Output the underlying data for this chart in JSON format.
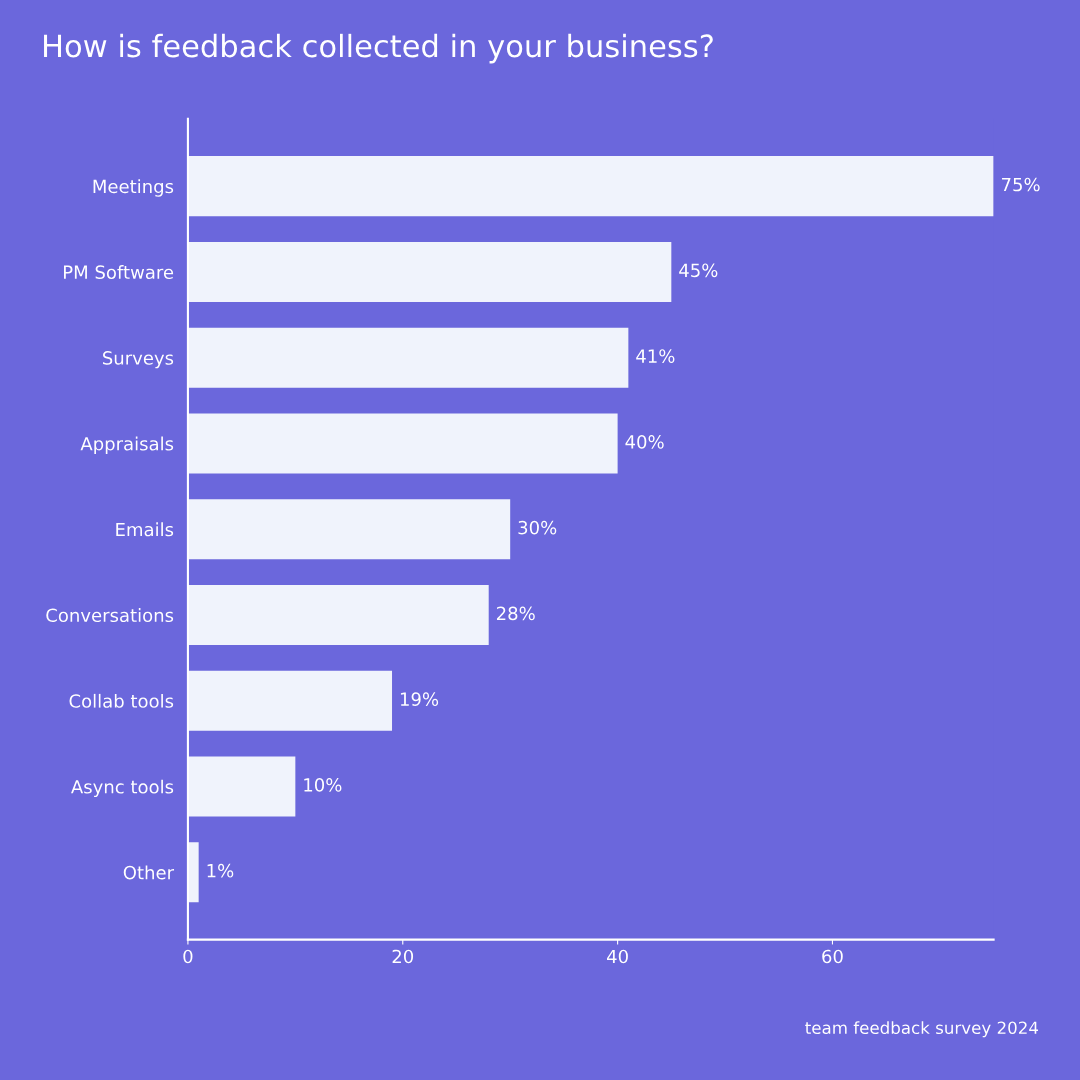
{
  "chart_data": {
    "type": "bar",
    "orientation": "horizontal",
    "title": "How is feedback collected in your business?",
    "categories": [
      "Meetings",
      "PM Software",
      "Surveys",
      "Appraisals",
      "Emails",
      "Conversations",
      "Collab tools",
      "Async tools",
      "Other"
    ],
    "values": [
      75,
      45,
      41,
      40,
      30,
      28,
      19,
      10,
      1
    ],
    "value_labels": [
      "75%",
      "45%",
      "41%",
      "40%",
      "30%",
      "28%",
      "19%",
      "10%",
      "1%"
    ],
    "color": "#f0f3fc",
    "xlim": [
      0,
      75
    ],
    "xticks": [
      0,
      20,
      40,
      60
    ],
    "grid": false,
    "legend": false,
    "annotations": [
      "team feedback survey 2024"
    ]
  }
}
